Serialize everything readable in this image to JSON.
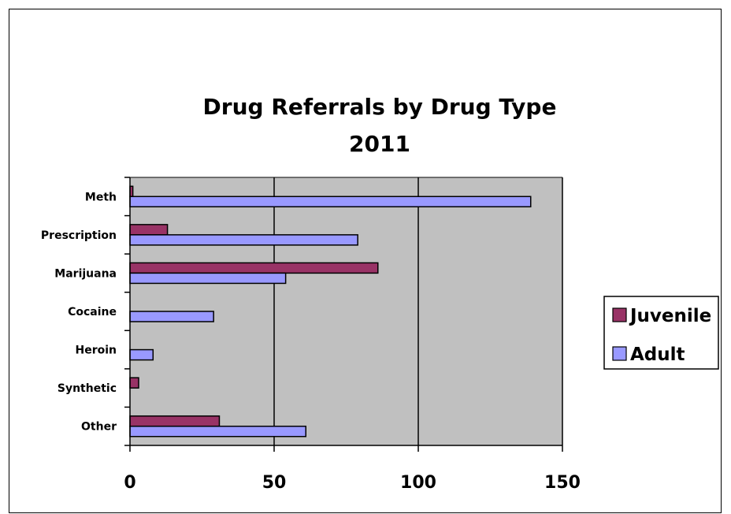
{
  "chart_data": {
    "type": "bar",
    "orientation": "horizontal",
    "title": "Drug Referrals by Drug Type",
    "subtitle": "2011",
    "xlabel": "",
    "ylabel": "",
    "categories": [
      "Meth",
      "Prescription",
      "Marijuana",
      "Cocaine",
      "Heroin",
      "Synthetic",
      "Other"
    ],
    "series": [
      {
        "name": "Juvenile",
        "values": [
          1,
          13,
          86,
          0,
          0,
          3,
          31
        ],
        "color": "#993366"
      },
      {
        "name": "Adult",
        "values": [
          139,
          79,
          54,
          29,
          8,
          0,
          61
        ],
        "color": "#9999FF"
      }
    ],
    "xlim": [
      0,
      150
    ],
    "xticks": [
      "0",
      "50",
      "100",
      "150"
    ],
    "grid": true,
    "plot_background": "#C0C0C0",
    "legend_position": "right"
  }
}
